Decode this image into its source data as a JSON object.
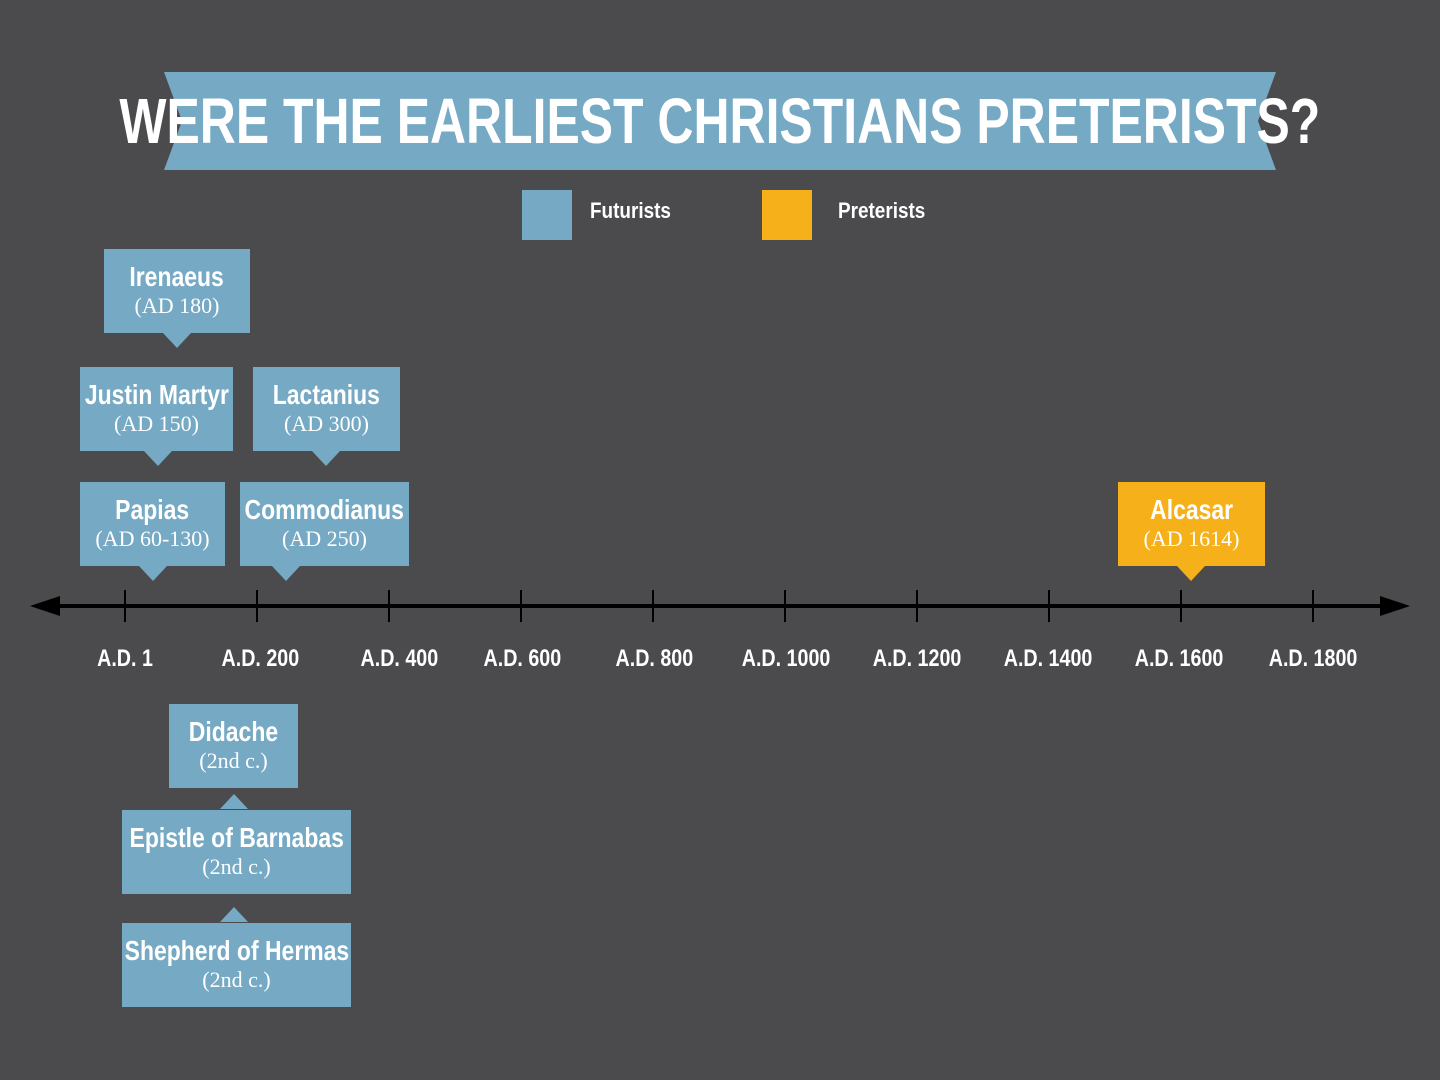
{
  "title": "Were the Earliest Christians Preterists?",
  "colors": {
    "background": "#4b4b4d",
    "futurist": "#75a9c4",
    "preterist": "#f6b01a",
    "banner": "#75a9c4",
    "axis": "#000000"
  },
  "legend": [
    {
      "label": "Futurists",
      "color": "#75a9c4"
    },
    {
      "label": "Preterists",
      "color": "#f6b01a"
    }
  ],
  "axis_labels": [
    "A.D. 1",
    "A.D. 200",
    "A.D. 400",
    "A.D. 600",
    "A.D. 800",
    "A.D. 1000",
    "A.D. 1200",
    "A.D. 1400",
    "A.D. 1600",
    "A.D. 1800"
  ],
  "figures": [
    {
      "name": "Irenaeus",
      "date": "(AD 180)",
      "group": "futurist"
    },
    {
      "name": "Justin Martyr",
      "date": "(AD 150)",
      "group": "futurist"
    },
    {
      "name": "Lactanius",
      "date": "(AD 300)",
      "group": "futurist"
    },
    {
      "name": "Papias",
      "date": "(AD 60-130)",
      "group": "futurist"
    },
    {
      "name": "Commodianus",
      "date": "(AD 250)",
      "group": "futurist"
    },
    {
      "name": "Alcasar",
      "date": "(AD 1614)",
      "group": "preterist"
    },
    {
      "name": "Didache",
      "date": "(2nd c.)",
      "group": "futurist"
    },
    {
      "name": "Epistle of Barnabas",
      "date": "(2nd c.)",
      "group": "futurist"
    },
    {
      "name": "Shepherd of Hermas",
      "date": "(2nd c.)",
      "group": "futurist"
    }
  ]
}
